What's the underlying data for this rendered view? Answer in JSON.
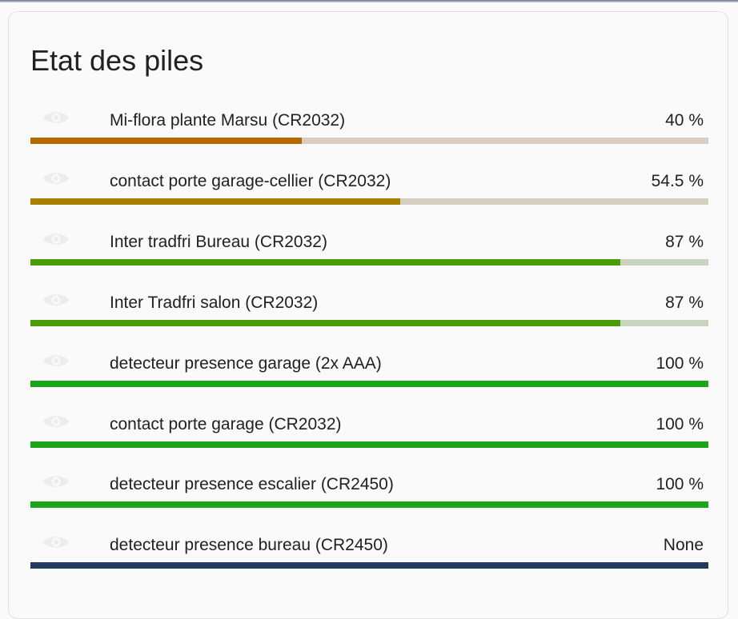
{
  "card": {
    "title": "Etat des piles"
  },
  "entities": [
    {
      "name": "Mi-flora plante Marsu (CR2032)",
      "state": "40 %",
      "level": 0.4,
      "fill_color": "#b56a00",
      "track_color": "#d9cdc1",
      "icon": "eye-icon"
    },
    {
      "name": "contact porte garage-cellier (CR2032)",
      "state": "54.5 %",
      "level": 0.545,
      "fill_color": "#a88000",
      "track_color": "#d6cfc0",
      "icon": "eye-icon"
    },
    {
      "name": "Inter tradfri Bureau (CR2032)",
      "state": "87 %",
      "level": 0.87,
      "fill_color": "#4c9c0a",
      "track_color": "#c8d3c0",
      "icon": "eye-icon"
    },
    {
      "name": "Inter Tradfri salon (CR2032)",
      "state": "87 %",
      "level": 0.87,
      "fill_color": "#4c9c0a",
      "track_color": "#c8d3c0",
      "icon": "eye-icon"
    },
    {
      "name": "detecteur presence garage (2x AAA)",
      "state": "100 %",
      "level": 1.0,
      "fill_color": "#1da51a",
      "track_color": "#c3d8c3",
      "icon": "eye-icon"
    },
    {
      "name": "contact porte garage (CR2032)",
      "state": "100 %",
      "level": 1.0,
      "fill_color": "#1da51a",
      "track_color": "#c3d8c3",
      "icon": "eye-icon"
    },
    {
      "name": "detecteur presence escalier (CR2450)",
      "state": "100 %",
      "level": 1.0,
      "fill_color": "#1da51a",
      "track_color": "#c3d8c3",
      "icon": "eye-icon"
    },
    {
      "name": "detecteur presence bureau (CR2450)",
      "state": "None",
      "level": 1.0,
      "fill_color": "#1f3a5f",
      "track_color": "#1f3a5f",
      "icon": "eye-icon"
    }
  ]
}
